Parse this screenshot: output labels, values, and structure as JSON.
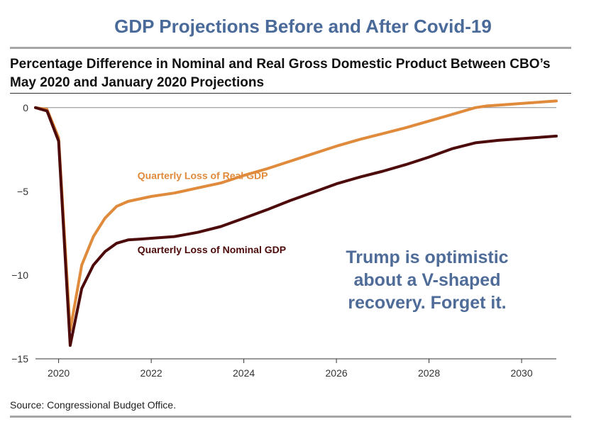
{
  "header": {
    "title": "GDP Projections Before and After Covid-19",
    "subtitle_line1": "Percentage Difference in Nominal and Real Gross Domestic Product Between CBO’s",
    "subtitle_line2": "May 2020 and January 2020 Projections"
  },
  "annotation": {
    "line1": "Trump is optimistic",
    "line2": "about a V-shaped",
    "line3": "recovery. Forget it."
  },
  "footer": {
    "source": "Source: Congressional Budget Office."
  },
  "colors": {
    "real": "#e08a3c",
    "nominal": "#4d0a0a",
    "title": "#4a6a9a",
    "annotation": "#4f6c98"
  },
  "chart_data": {
    "type": "line",
    "xlim": [
      2019.5,
      2030.75
    ],
    "ylim": [
      -15,
      0.5
    ],
    "y_ticks": [
      0,
      -5,
      -10,
      -15
    ],
    "y_tick_labels": [
      "0",
      "−5",
      "−10",
      "−15"
    ],
    "x_ticks": [
      2020,
      2022,
      2024,
      2026,
      2028,
      2030
    ],
    "x_tick_labels": [
      "2020",
      "2022",
      "2024",
      "2026",
      "2028",
      "2030"
    ],
    "grid": false,
    "series": [
      {
        "name": "Quarterly Loss of Real GDP",
        "color": "#e08a3c",
        "x": [
          2019.5,
          2019.75,
          2020.0,
          2020.25,
          2020.5,
          2020.75,
          2021.0,
          2021.25,
          2021.5,
          2021.75,
          2022.0,
          2022.5,
          2023.0,
          2023.5,
          2024.0,
          2024.5,
          2025.0,
          2025.5,
          2026.0,
          2026.5,
          2027.0,
          2027.5,
          2028.0,
          2028.5,
          2029.0,
          2029.25,
          2029.5,
          2030.0,
          2030.5,
          2030.75
        ],
        "y": [
          0.0,
          -0.1,
          -1.8,
          -13.3,
          -9.4,
          -7.7,
          -6.6,
          -5.9,
          -5.6,
          -5.45,
          -5.3,
          -5.1,
          -4.8,
          -4.5,
          -4.05,
          -3.65,
          -3.2,
          -2.75,
          -2.3,
          -1.9,
          -1.55,
          -1.2,
          -0.8,
          -0.4,
          0.0,
          0.1,
          0.15,
          0.25,
          0.35,
          0.4
        ]
      },
      {
        "name": "Quarterly Loss of Nominal GDP",
        "color": "#4d0a0a",
        "x": [
          2019.5,
          2019.75,
          2020.0,
          2020.25,
          2020.5,
          2020.75,
          2021.0,
          2021.25,
          2021.5,
          2021.75,
          2022.0,
          2022.5,
          2023.0,
          2023.5,
          2024.0,
          2024.5,
          2025.0,
          2025.5,
          2026.0,
          2026.5,
          2027.0,
          2027.5,
          2028.0,
          2028.5,
          2029.0,
          2029.5,
          2030.0,
          2030.5,
          2030.75
        ],
        "y": [
          0.0,
          -0.2,
          -2.0,
          -14.2,
          -10.8,
          -9.4,
          -8.6,
          -8.1,
          -7.9,
          -7.85,
          -7.8,
          -7.7,
          -7.45,
          -7.1,
          -6.6,
          -6.1,
          -5.55,
          -5.05,
          -4.55,
          -4.15,
          -3.8,
          -3.4,
          -2.95,
          -2.45,
          -2.1,
          -1.95,
          -1.85,
          -1.75,
          -1.7
        ]
      }
    ],
    "labels": [
      {
        "series": 0,
        "text": "Quarterly Loss of Real GDP"
      },
      {
        "series": 1,
        "text": "Quarterly Loss of Nominal GDP"
      }
    ]
  }
}
